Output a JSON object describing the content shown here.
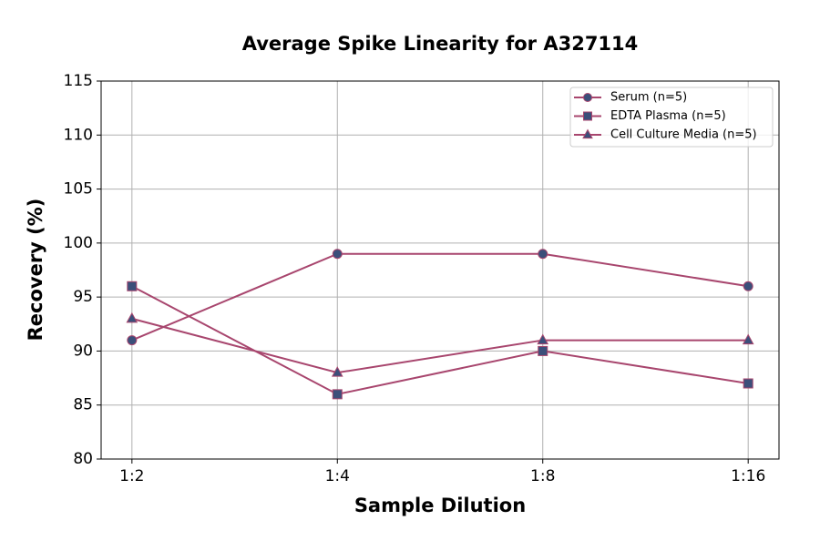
{
  "chart_data": {
    "type": "line",
    "title": "Average Spike Linearity for A327114",
    "x_label": "Sample Dilution",
    "y_label": "Recovery (%)",
    "categories": [
      "1:2",
      "1:4",
      "1:8",
      "1:16"
    ],
    "series": [
      {
        "name": "Serum (n=5)",
        "color": "#a8466e",
        "marker": "circle",
        "marker_color": "#3b4f7a",
        "values": [
          91,
          99,
          99,
          96
        ]
      },
      {
        "name": "EDTA Plasma (n=5)",
        "color": "#a8466e",
        "marker": "square",
        "marker_color": "#3b4f7a",
        "values": [
          96,
          86,
          90,
          87
        ]
      },
      {
        "name": "Cell Culture Media (n=5)",
        "color": "#a8466e",
        "marker": "triangle",
        "marker_color": "#3b4f7a",
        "values": [
          93,
          88,
          91,
          91
        ]
      }
    ],
    "ylim": [
      80,
      115
    ],
    "yticks": [
      80,
      85,
      90,
      95,
      100,
      105,
      110,
      115
    ],
    "grid": true,
    "legend": "upper-right"
  }
}
